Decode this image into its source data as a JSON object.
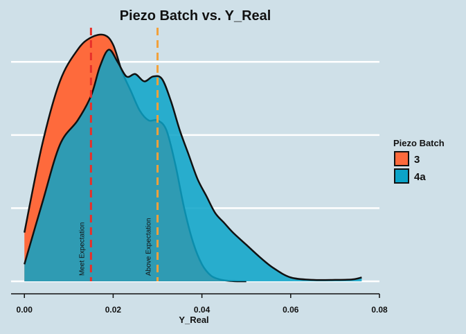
{
  "chart_data": {
    "type": "area",
    "title": "Piezo Batch vs. Y_Real",
    "xlabel": "Y_Real",
    "ylabel": "",
    "xlim": [
      -0.003,
      0.08
    ],
    "ylim": [
      0,
      52
    ],
    "x_ticks": [
      0.0,
      0.02,
      0.04,
      0.06,
      0.08
    ],
    "x_tick_labels": [
      "0.00",
      "0.02",
      "0.04",
      "0.06",
      "0.08"
    ],
    "y_grid": [
      0,
      15,
      30,
      45
    ],
    "grid": "horizontal",
    "legend": {
      "title": "Piezo Batch",
      "position": "right"
    },
    "series": [
      {
        "name": "3",
        "color": "#fe6a3c",
        "x": [
          0.0,
          0.004,
          0.008,
          0.012,
          0.015,
          0.018,
          0.02,
          0.022,
          0.024,
          0.026,
          0.028,
          0.03,
          0.032,
          0.034,
          0.036,
          0.038,
          0.04,
          0.042,
          0.044,
          0.046,
          0.048,
          0.05
        ],
        "y": [
          10.0,
          28.0,
          41.0,
          47.5,
          50.0,
          50.5,
          48.5,
          43.0,
          39.0,
          35.0,
          33.0,
          33.0,
          31.0,
          24.0,
          15.0,
          8.0,
          3.5,
          1.2,
          0.4,
          0.1,
          0.0,
          0.0
        ]
      },
      {
        "name": "4a",
        "color": "#0ba3c8",
        "x": [
          0.0,
          0.004,
          0.008,
          0.012,
          0.015,
          0.017,
          0.019,
          0.021,
          0.023,
          0.025,
          0.027,
          0.029,
          0.031,
          0.033,
          0.035,
          0.037,
          0.039,
          0.041,
          0.043,
          0.045,
          0.047,
          0.05,
          0.053,
          0.056,
          0.06,
          0.065,
          0.07,
          0.074,
          0.076
        ],
        "y": [
          3.5,
          16.0,
          28.0,
          33.0,
          38.0,
          44.0,
          47.5,
          45.0,
          42.0,
          42.5,
          41.0,
          42.0,
          41.5,
          37.0,
          31.0,
          26.0,
          21.0,
          17.5,
          14.0,
          12.0,
          10.0,
          7.5,
          5.0,
          2.8,
          0.8,
          0.3,
          0.3,
          0.4,
          0.8
        ]
      }
    ],
    "annotations": [
      {
        "x": 0.015,
        "label": "Meet Expectation",
        "color": "#e8302a"
      },
      {
        "x": 0.03,
        "label": "Above Expectation",
        "color": "#f2a13a"
      }
    ]
  }
}
